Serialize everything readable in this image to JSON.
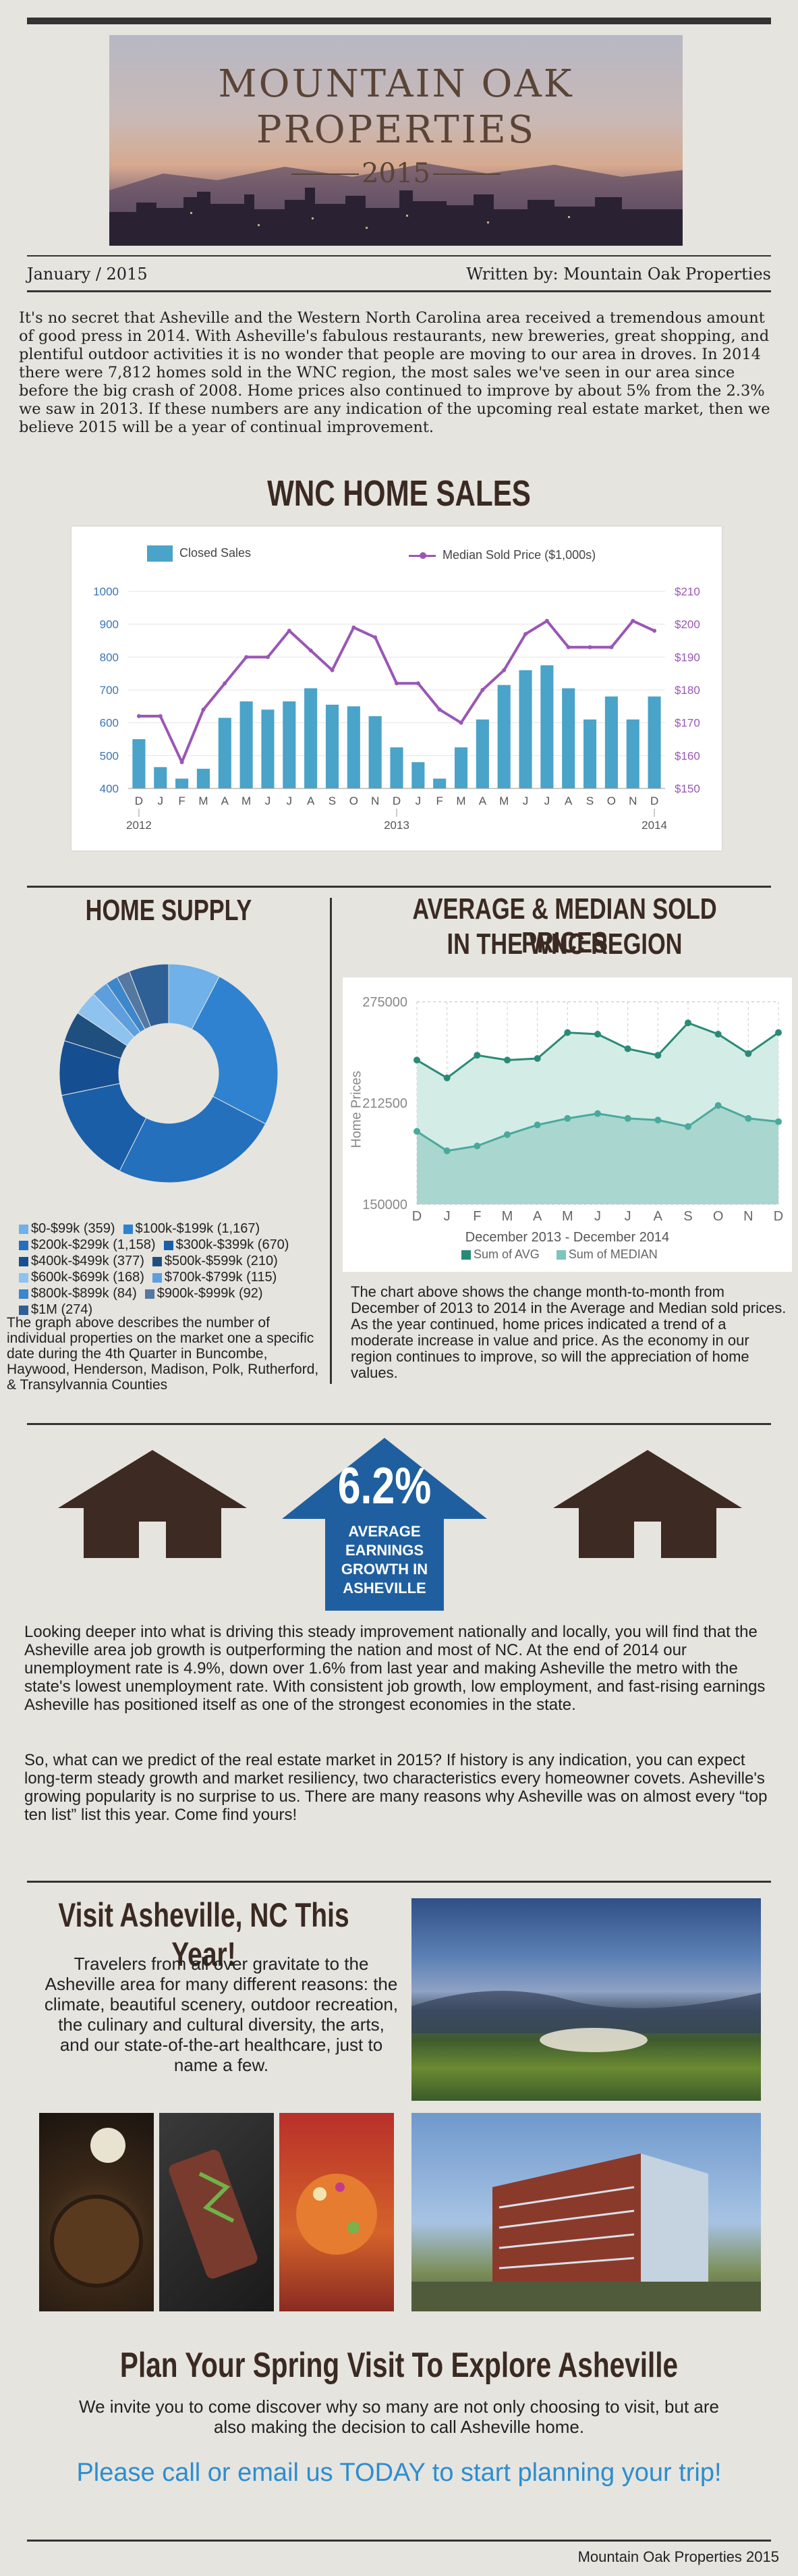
{
  "header": {
    "title_line1": "MOUNTAIN OAK",
    "title_line2": "PROPERTIES",
    "year": "2015",
    "date": "January / 2015",
    "byline": "Written by: Mountain Oak Properties"
  },
  "intro": {
    "text": "It's no secret that Asheville and the Western North Carolina area received a tremendous amount of good press in 2014.  With Asheville's fabulous restaurants, new breweries, great shopping, and plentiful outdoor activities it is no wonder that people are moving to our area in droves.  In 2014 there were 7,812 homes sold in the WNC region, the most sales we've seen in our area since before the big crash of 2008.  Home prices also continued to improve by about 5% from the 2.3% we saw in 2013.  If these numbers are any indication of the upcoming real estate market, then we believe 2015 will be a year of continual improvement."
  },
  "sales_section": {
    "heading": "WNC HOME SALES"
  },
  "chart_data": [
    {
      "type": "bar",
      "series": [
        {
          "name": "Closed Sales",
          "values": [
            550,
            465,
            430,
            460,
            615,
            665,
            640,
            665,
            705,
            655,
            650,
            620,
            525,
            480,
            430,
            525,
            610,
            715,
            760,
            775,
            705,
            610,
            680,
            610,
            680
          ]
        },
        {
          "name": "Median Sold Price ($1,000s)",
          "values": [
            172,
            172,
            158,
            174,
            182,
            190,
            190,
            198,
            192,
            186,
            199,
            196,
            182,
            182,
            174,
            170,
            180,
            186,
            197,
            201,
            193,
            193,
            193,
            201,
            198
          ]
        }
      ],
      "categories": [
        "D",
        "J",
        "F",
        "M",
        "A",
        "M",
        "J",
        "J",
        "A",
        "S",
        "O",
        "N",
        "D",
        "J",
        "F",
        "M",
        "A",
        "M",
        "J",
        "J",
        "A",
        "S",
        "O",
        "N",
        "D"
      ],
      "year_labels": [
        "2012",
        "2013",
        "2014"
      ],
      "yleft_ticks": [
        "1000",
        "900",
        "800",
        "700",
        "600",
        "500",
        "400"
      ],
      "yright_ticks": [
        "$210",
        "$200",
        "$190",
        "$180",
        "$170",
        "$160",
        "$150"
      ],
      "ylim_left": [
        400,
        1000
      ],
      "ylim_right": [
        150,
        210
      ],
      "legend_position": "top",
      "colors": {
        "bars": "#4aa3c8",
        "line": "#9a56b5"
      }
    },
    {
      "type": "pie",
      "title": "HOME SUPPLY",
      "labels": [
        "$0-$99k (359)",
        "$100k-$199k (1,167)",
        "$200k-$299k (1,158)",
        "$300k-$399k (670)",
        "$400k-$499k (377)",
        "$500k-$599k (210)",
        "$600k-$699k (168)",
        "$700k-$799k (115)",
        "$800k-$899k (84)",
        "$900k-$999k (92)",
        "$1M (274)"
      ],
      "values": [
        359,
        1167,
        1158,
        670,
        377,
        210,
        168,
        115,
        84,
        92,
        274
      ],
      "colors": [
        "#6fb1e8",
        "#2f82cf",
        "#2470bc",
        "#1b5ea8",
        "#154f92",
        "#1f4f7e",
        "#8fc3ef",
        "#5d9fdd",
        "#3c86cc",
        "#5478a0",
        "#2e5f95"
      ]
    },
    {
      "type": "area",
      "title": "AVERAGE & MEDIAN SOLD PRICES IN THE WNC REGION",
      "categories": [
        "D",
        "J",
        "F",
        "M",
        "A",
        "M",
        "J",
        "J",
        "A",
        "S",
        "O",
        "N",
        "D"
      ],
      "series": [
        {
          "name": "Sum of AVG",
          "values": [
            239000,
            228000,
            242000,
            239000,
            240000,
            256000,
            255000,
            246000,
            242000,
            262000,
            255000,
            243000,
            256000
          ]
        },
        {
          "name": "Sum of MEDIAN",
          "values": [
            195000,
            183000,
            186000,
            193000,
            199000,
            203000,
            206000,
            203000,
            202000,
            198000,
            211000,
            203000,
            201000
          ]
        }
      ],
      "yticks": [
        "275000",
        "212500",
        "150000"
      ],
      "ylim": [
        150000,
        275000
      ],
      "ylabel": "Home Prices",
      "xlabel": "December 2013 - December 2014",
      "grid": true,
      "colors": {
        "avg": "#2a8a78",
        "median": "#7dc5bd"
      }
    }
  ],
  "supply": {
    "heading": "HOME SUPPLY",
    "caption": "The graph above describes the number of individual properties on the market one a specific date during the 4th Quarter in Buncombe, Haywood, Henderson, Madison, Polk, Rutherford, & Transylvannia Counties"
  },
  "prices": {
    "heading_line1": "AVERAGE & MEDIAN SOLD PRICES",
    "heading_line2": "IN THE WNC REGION",
    "caption": "The chart above shows the change month-to-month from December of 2013 to 2014 in the Average and Median sold prices. As the year continued, home prices indicated a trend of a moderate increase in value and price.  As the economy in our region continues to improve, so will the appreciation of home values."
  },
  "earnings": {
    "percent": "6.2%",
    "label_line1": "AVERAGE",
    "label_line2": "EARNINGS",
    "label_line3": "GROWTH IN",
    "label_line4": "ASHEVILLE",
    "para1": "Looking deeper into what is driving this steady improvement nationally and locally, you will find that the Asheville area job growth is outperforming the nation and most of NC. At the end of 2014 our unemployment rate is 4.9%, down over 1.6% from last year and making Asheville the metro with the state's lowest unemployment rate.  With consistent job growth, low employment, and fast-rising earnings Asheville has positioned itself as one of the strongest economies in the state.",
    "para2": "So, what can we predict of the real estate market in 2015? If history is any indication, you can expect long-term steady growth and market resiliency, two characteristics every homeowner covets. Asheville's growing popularity is no surprise to us. There are many reasons why Asheville was on almost every “top ten list” list this year. Come find yours!"
  },
  "visit": {
    "heading": "Visit Asheville, NC This Year!",
    "text": "Travelers from all over gravitate to the Asheville area for many different reasons: the climate, beautiful scenery, outdoor recreation, the culinary and cultural diversity, the arts, and our state-of-the-art healthcare, just to name a few."
  },
  "spring": {
    "heading": "Plan Your Spring Visit To Explore Asheville",
    "text": "We invite you to come discover why so many are not only choosing to visit, but are also making the decision to call Asheville home.",
    "cta": "Please call or email us TODAY to start planning your trip!"
  },
  "footer": {
    "text": "Mountain Oak Properties 2015"
  }
}
